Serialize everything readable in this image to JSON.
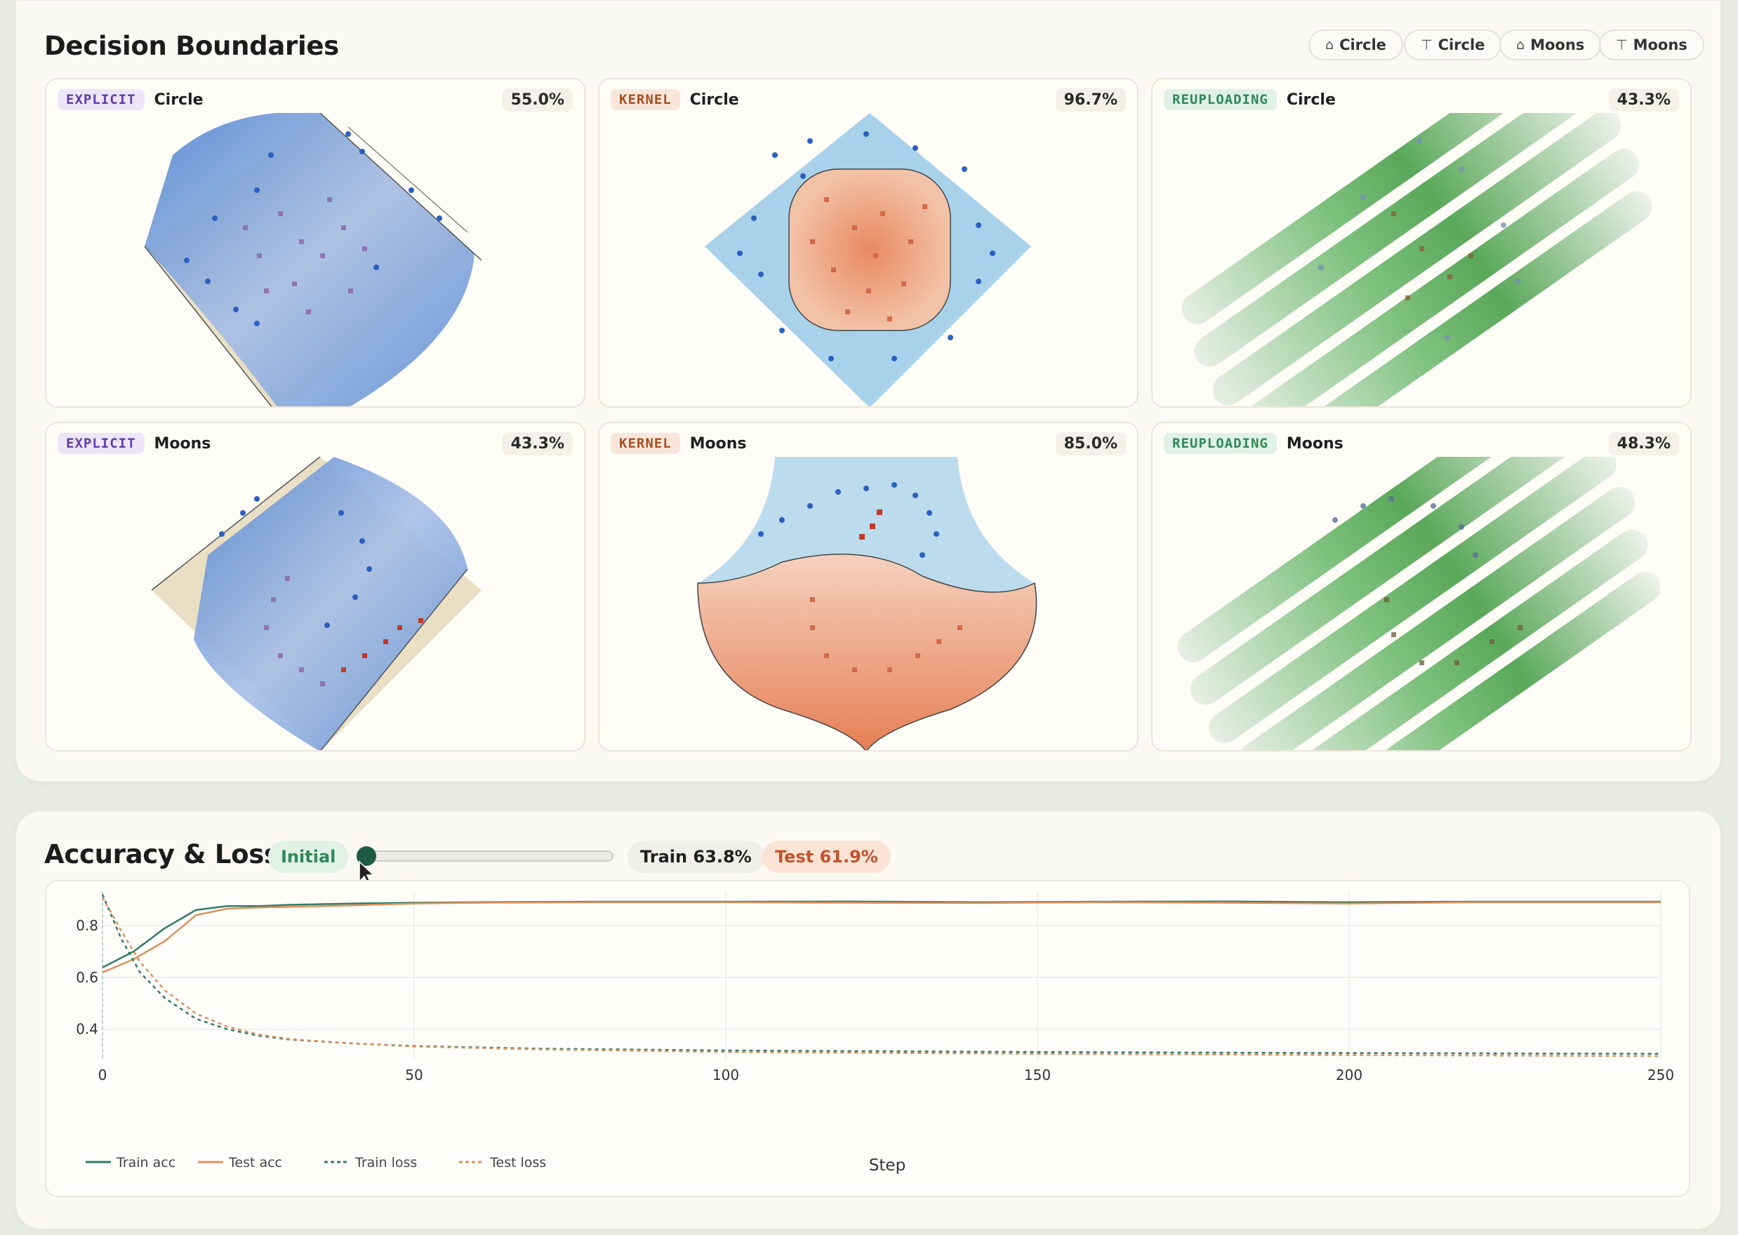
{
  "decision_boundaries": {
    "title": "Decision Boundaries",
    "filters": [
      {
        "symbol": "⌂",
        "label": "Circle"
      },
      {
        "symbol": "⊤",
        "label": "Circle"
      },
      {
        "symbol": "⌂",
        "label": "Moons"
      },
      {
        "symbol": "⊤",
        "label": "Moons"
      }
    ],
    "panels": [
      {
        "model": "EXPLICIT",
        "dataset": "Circle",
        "accuracy": "55.0%"
      },
      {
        "model": "KERNEL",
        "dataset": "Circle",
        "accuracy": "96.7%"
      },
      {
        "model": "REUPLOADING",
        "dataset": "Circle",
        "accuracy": "43.3%"
      },
      {
        "model": "EXPLICIT",
        "dataset": "Moons",
        "accuracy": "43.3%"
      },
      {
        "model": "KERNEL",
        "dataset": "Moons",
        "accuracy": "85.0%"
      },
      {
        "model": "REUPLOADING",
        "dataset": "Moons",
        "accuracy": "48.3%"
      }
    ]
  },
  "accuracy_loss": {
    "title": "Accuracy & Loss",
    "stage_label": "Initial",
    "train_pill": "Train 63.8%",
    "test_pill": "Test 61.9%",
    "slider_value": 0
  },
  "colors": {
    "train": "#2e7d66",
    "test": "#e0905a",
    "class_a": "#2b5fc0",
    "class_b": "#c0392b"
  },
  "chart_data": {
    "type": "line",
    "xlabel": "Step",
    "ylabel": "",
    "xlim": [
      0,
      250
    ],
    "ylim": [
      0.28,
      0.93
    ],
    "x_ticks": [
      0,
      50,
      100,
      150,
      200,
      250
    ],
    "y_ticks": [
      0.4,
      0.6,
      0.8
    ],
    "grid": true,
    "legend_position": "bottom-left",
    "series": [
      {
        "name": "Train acc",
        "style": "solid",
        "color": "#2e7d66",
        "x": [
          0,
          5,
          10,
          15,
          20,
          25,
          30,
          40,
          50,
          60,
          80,
          100,
          120,
          140,
          160,
          180,
          200,
          220,
          250
        ],
        "y": [
          0.638,
          0.7,
          0.79,
          0.86,
          0.875,
          0.875,
          0.88,
          0.885,
          0.888,
          0.89,
          0.892,
          0.892,
          0.893,
          0.89,
          0.892,
          0.893,
          0.89,
          0.892,
          0.892
        ]
      },
      {
        "name": "Test acc",
        "style": "solid",
        "color": "#e0905a",
        "x": [
          0,
          5,
          10,
          15,
          20,
          25,
          30,
          40,
          50,
          60,
          80,
          100,
          120,
          140,
          160,
          180,
          200,
          220,
          250
        ],
        "y": [
          0.619,
          0.67,
          0.74,
          0.84,
          0.865,
          0.87,
          0.872,
          0.878,
          0.885,
          0.888,
          0.89,
          0.89,
          0.888,
          0.887,
          0.89,
          0.888,
          0.885,
          0.89,
          0.89
        ]
      },
      {
        "name": "Train loss",
        "style": "dashed",
        "color": "#2e7d66",
        "x": [
          0,
          3,
          6,
          10,
          15,
          20,
          25,
          30,
          40,
          50,
          70,
          100,
          150,
          200,
          250
        ],
        "y": [
          0.92,
          0.75,
          0.62,
          0.52,
          0.44,
          0.4,
          0.375,
          0.36,
          0.345,
          0.335,
          0.325,
          0.318,
          0.312,
          0.308,
          0.305
        ]
      },
      {
        "name": "Test loss",
        "style": "dashed",
        "color": "#e0905a",
        "x": [
          0,
          3,
          6,
          10,
          15,
          20,
          25,
          30,
          40,
          50,
          70,
          100,
          150,
          200,
          250
        ],
        "y": [
          0.91,
          0.78,
          0.66,
          0.55,
          0.46,
          0.41,
          0.38,
          0.362,
          0.345,
          0.333,
          0.322,
          0.312,
          0.305,
          0.3,
          0.296
        ]
      }
    ]
  }
}
